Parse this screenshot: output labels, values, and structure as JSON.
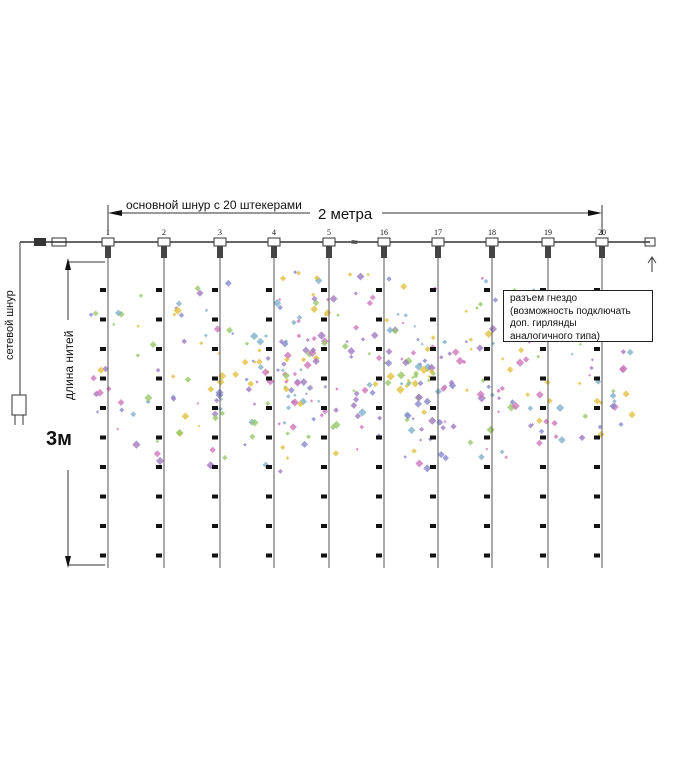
{
  "diagram": {
    "main_cord_label": "основной шнур с 20 штекерами",
    "width_label": "2 метра",
    "socket_numbers": [
      "1",
      "2",
      "3",
      "4",
      "5",
      "16",
      "17",
      "18",
      "19",
      "20"
    ],
    "power_cord_label": "сетевой шнур",
    "strand_length_label": "длина нитей",
    "strand_length_value": "3м",
    "socket_note": [
      "разъем гнездо",
      "(возможность подключать",
      "доп. гирлянды",
      "аналогичного типа)"
    ],
    "decor_colors": [
      "#9ac86a",
      "#7fb0c8",
      "#8888cc",
      "#cc77bb",
      "#e0c040",
      "#a07ac0"
    ]
  }
}
